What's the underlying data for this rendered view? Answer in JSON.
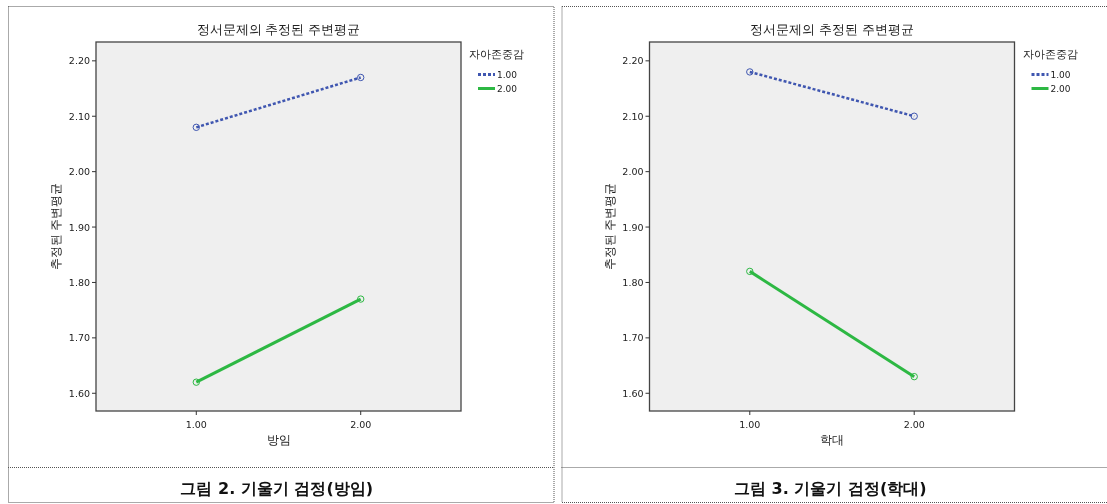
{
  "chart_data": [
    {
      "type": "line",
      "title": "정서문제의 추정된 주변평균",
      "xlabel": "방임",
      "ylabel": "추정된 주변평균",
      "legend_title": "자아존중감",
      "legend": "top right",
      "marker": "circle",
      "grid": false,
      "categories": [
        "1.00",
        "2.00"
      ],
      "ylim": [
        1.568,
        2.234
      ],
      "yticks": [
        {
          "value": 1.6,
          "label": "1.60"
        },
        {
          "value": 1.7,
          "label": "1.70"
        },
        {
          "value": 1.8,
          "label": "1.80"
        },
        {
          "value": 1.9,
          "label": "1.90"
        },
        {
          "value": 2.0,
          "label": "2.00"
        },
        {
          "value": 2.1,
          "label": "2.10"
        },
        {
          "value": 2.2,
          "label": "2.20"
        }
      ],
      "series": [
        {
          "name": "1.00",
          "color": "#3f56b0",
          "line_style": "dotted",
          "values": [
            2.08,
            2.17
          ]
        },
        {
          "name": "2.00",
          "color": "#2db843",
          "line_style": "solid",
          "values": [
            1.62,
            1.77
          ]
        }
      ],
      "annotations": [
        "그림 2. 기울기 검정(방임)"
      ]
    },
    {
      "type": "line",
      "title": "정서문제의 추정된 주변평균",
      "xlabel": "학대",
      "ylabel": "추정된 주변평균",
      "legend_title": "자아존중감",
      "legend": "top right",
      "marker": "circle",
      "grid": false,
      "categories": [
        "1.00",
        "2.00"
      ],
      "ylim": [
        1.568,
        2.234
      ],
      "yticks": [
        {
          "value": 1.6,
          "label": "1.60"
        },
        {
          "value": 1.7,
          "label": "1.70"
        },
        {
          "value": 1.8,
          "label": "1.80"
        },
        {
          "value": 1.9,
          "label": "1.90"
        },
        {
          "value": 2.0,
          "label": "2.00"
        },
        {
          "value": 2.1,
          "label": "2.10"
        },
        {
          "value": 2.2,
          "label": "2.20"
        }
      ],
      "series": [
        {
          "name": "1.00",
          "color": "#3f56b0",
          "line_style": "dotted",
          "values": [
            2.18,
            2.1
          ]
        },
        {
          "name": "2.00",
          "color": "#2db843",
          "line_style": "solid",
          "values": [
            1.82,
            1.63
          ]
        }
      ],
      "annotations": [
        "그림 3. 기울기 검정(학대)"
      ]
    }
  ]
}
